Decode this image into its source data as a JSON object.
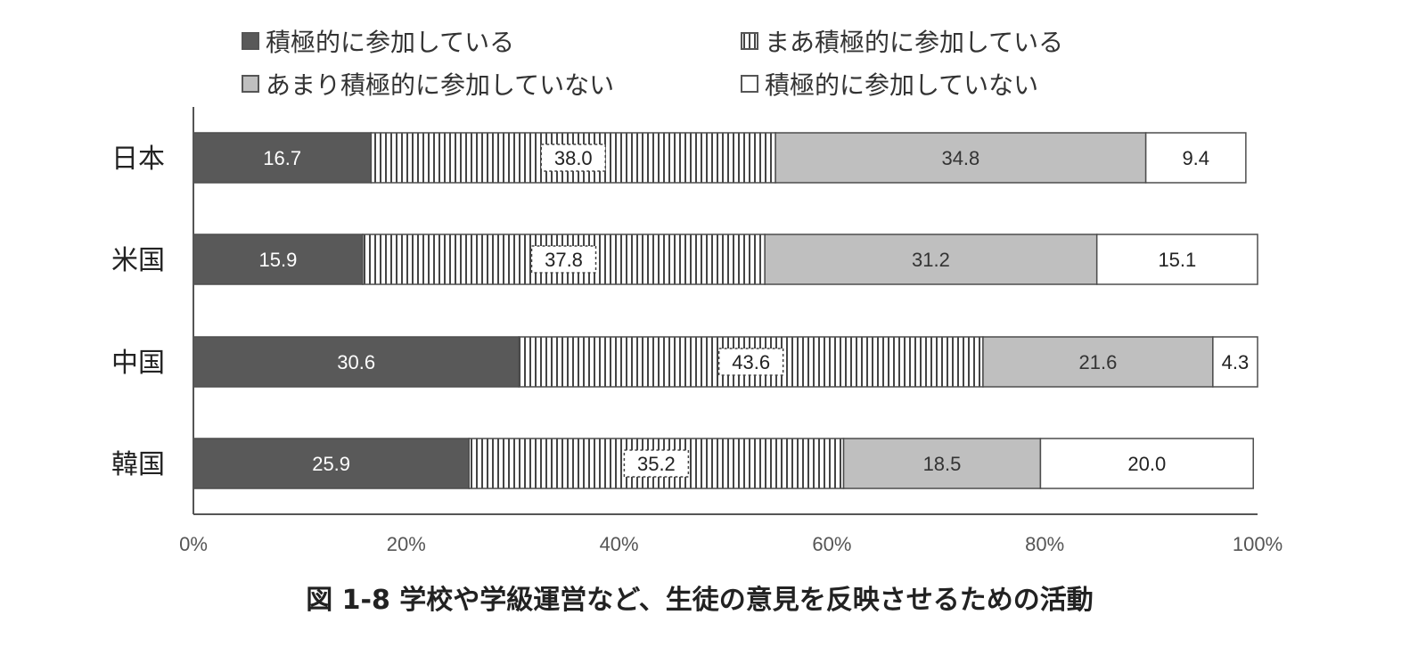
{
  "chart_data": {
    "type": "bar",
    "orientation": "horizontal",
    "stacked": true,
    "categories": [
      "日本",
      "米国",
      "中国",
      "韓国"
    ],
    "series": [
      {
        "name": "積極的に参加している",
        "values": [
          16.7,
          15.9,
          30.6,
          25.9
        ],
        "color": "#595959",
        "pattern": "solid",
        "label_color": "#ffffff"
      },
      {
        "name": "まあ積極的に参加している",
        "values": [
          38.0,
          37.8,
          43.6,
          35.2
        ],
        "color": "#ffffff",
        "pattern": "vertical-stripes",
        "label_color": "#222222"
      },
      {
        "name": "あまり積極的に参加していない",
        "values": [
          34.8,
          31.2,
          21.6,
          18.5
        ],
        "color": "#bfbfbf",
        "pattern": "solid",
        "label_color": "#333333"
      },
      {
        "name": "積極的に参加していない",
        "values": [
          9.4,
          15.1,
          4.3,
          20.0
        ],
        "color": "#ffffff",
        "pattern": "solid",
        "label_color": "#222222"
      }
    ],
    "x_ticks": [
      "0%",
      "20%",
      "40%",
      "60%",
      "80%",
      "100%"
    ],
    "xlim": [
      0,
      100
    ],
    "legend_position": "top",
    "grid": false,
    "caption": "図 1-8 学校や学級運営など、生徒の意見を反映させるための活動"
  }
}
